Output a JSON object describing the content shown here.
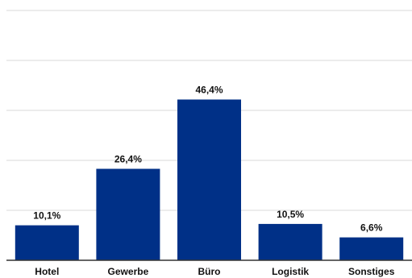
{
  "chart_data": {
    "type": "bar",
    "categories": [
      "Hotel",
      "Gewerbe",
      "Büro",
      "Logistik",
      "Sonstiges"
    ],
    "values": [
      10.1,
      26.4,
      46.4,
      10.5,
      6.6
    ],
    "value_labels": [
      "10,1%",
      "26,4%",
      "46,4%",
      "10,5%",
      "6,6%"
    ],
    "title": "",
    "xlabel": "",
    "ylabel": "",
    "ylim": [
      0,
      100
    ],
    "grid": true,
    "bar_color": "#003087"
  }
}
